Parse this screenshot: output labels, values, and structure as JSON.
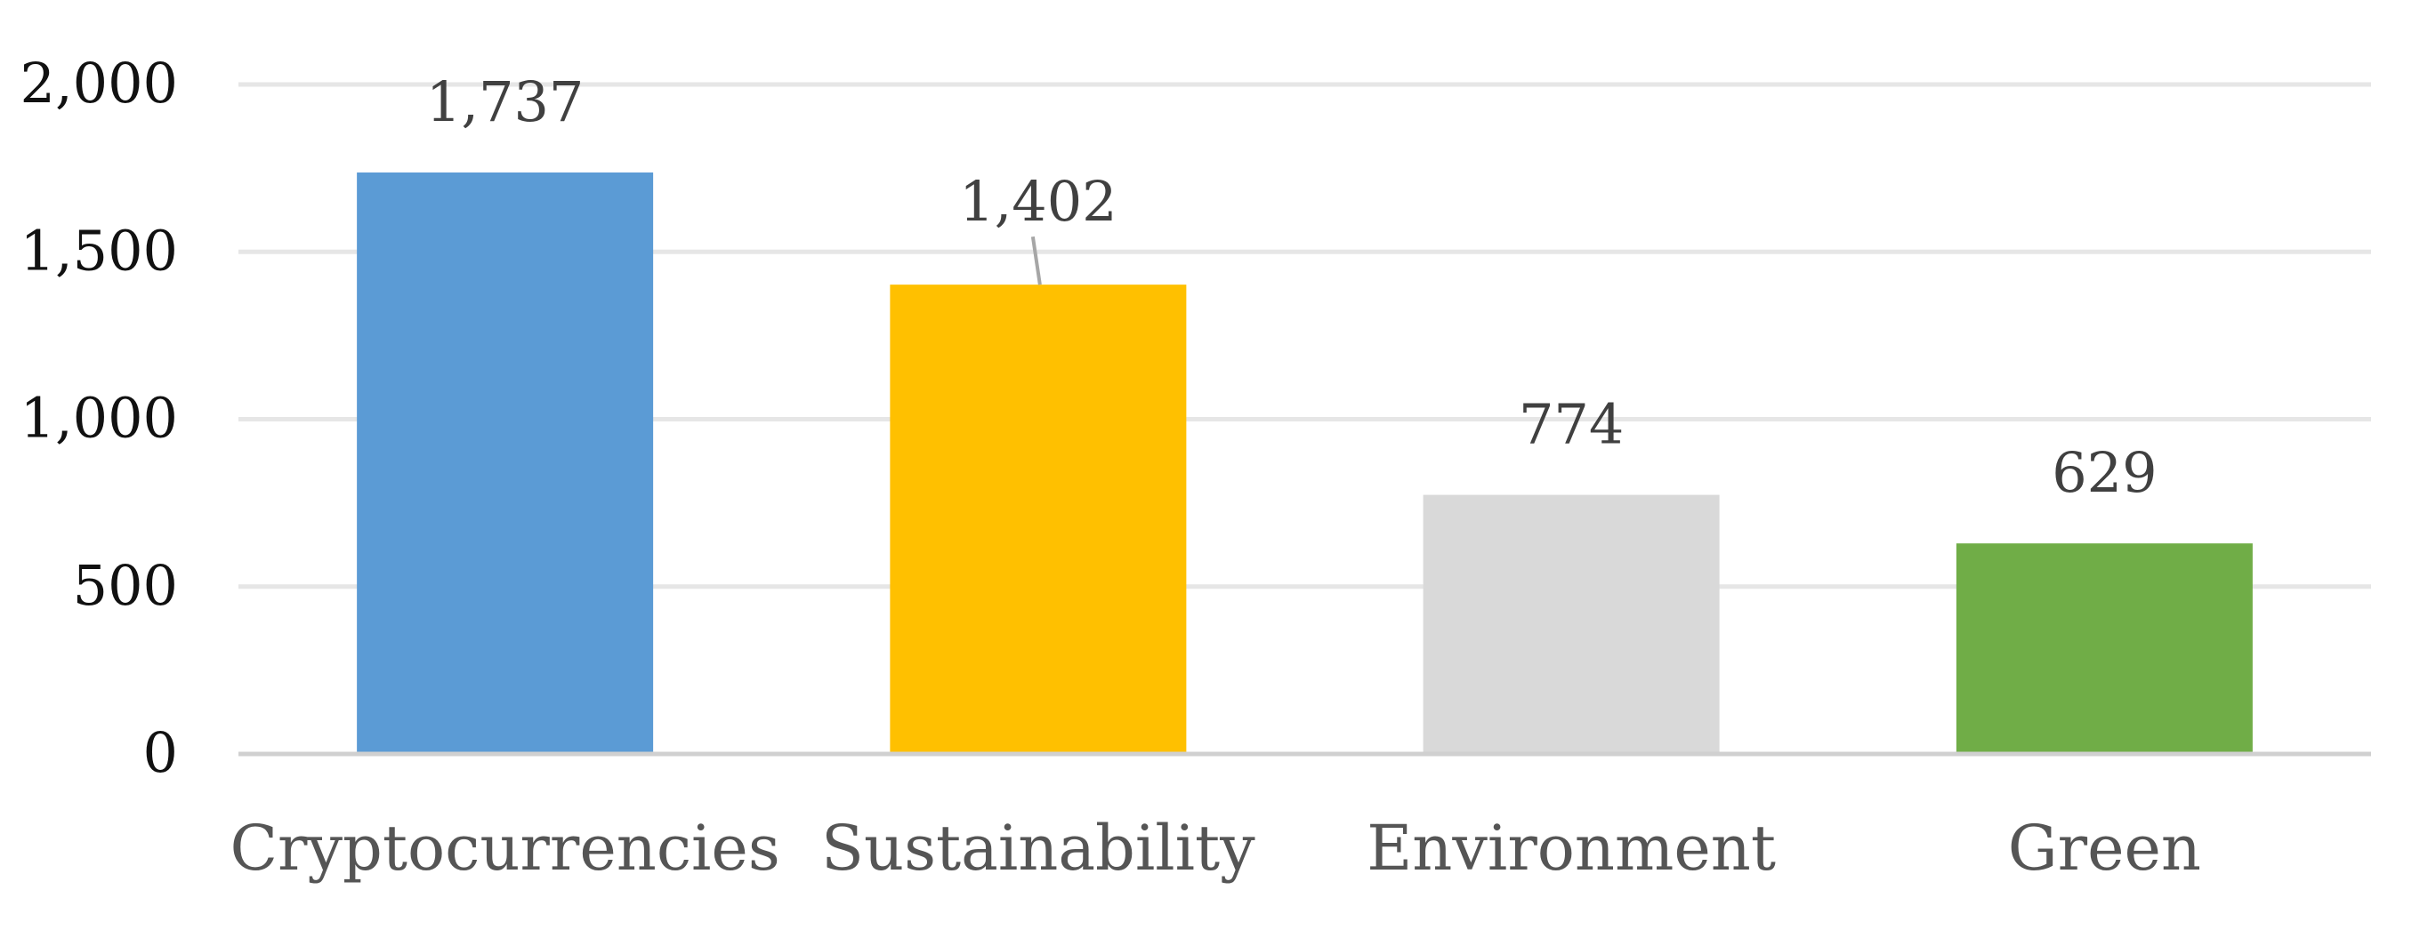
{
  "chart_data": {
    "type": "bar",
    "categories": [
      "Cryptocurrencies",
      "Sustainability",
      "Environment",
      "Green"
    ],
    "values": [
      1737,
      1402,
      774,
      629
    ],
    "data_labels": [
      "1,737",
      "1,402",
      "774",
      "629"
    ],
    "colors": [
      "#5b9bd5",
      "#ffc000",
      "#d9d9d9",
      "#70ad47"
    ],
    "y_ticks": [
      0,
      500,
      1000,
      1500,
      2000
    ],
    "y_tick_labels": [
      "0",
      "500",
      "1,000",
      "1,500",
      "2,000"
    ],
    "ylim": [
      0,
      2000
    ],
    "title": "",
    "xlabel": "",
    "ylabel": "",
    "grid": true,
    "legend": "none"
  }
}
